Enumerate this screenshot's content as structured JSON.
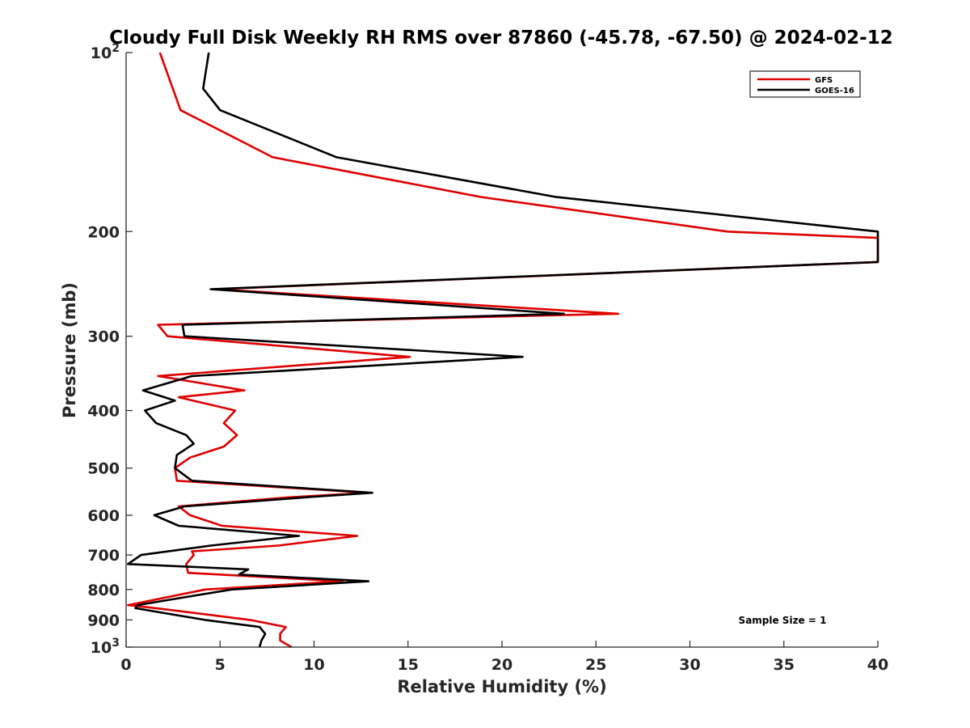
{
  "chart_data": {
    "type": "line",
    "title": "Cloudy Full Disk Weekly RH RMS over 87860 (-45.78, -67.50) @ 2024-02-12",
    "xlabel": "Relative Humidity (%)",
    "ylabel": "Pressure (mb)",
    "xlim": [
      0,
      40
    ],
    "ylim": [
      100,
      1000
    ],
    "y_scale": "log",
    "y_reversed": true,
    "grid": false,
    "legend_position": "top-right",
    "x_ticks": [
      0,
      5,
      10,
      15,
      20,
      25,
      30,
      35,
      40
    ],
    "y_ticks": [
      {
        "value": 100,
        "base": "10",
        "exp": "2"
      },
      {
        "value": 200,
        "label": "200"
      },
      {
        "value": 300,
        "label": "300"
      },
      {
        "value": 400,
        "label": "400"
      },
      {
        "value": 500,
        "label": "500"
      },
      {
        "value": 600,
        "label": "600"
      },
      {
        "value": 700,
        "label": "700"
      },
      {
        "value": 800,
        "label": "800"
      },
      {
        "value": 900,
        "label": "900"
      },
      {
        "value": 1000,
        "base": "10",
        "exp": "3"
      }
    ],
    "annotation": "Sample Size = 1",
    "series": [
      {
        "name": "GFS",
        "color": "#e00000",
        "points": [
          [
            1.8,
            100
          ],
          [
            2.9,
            125
          ],
          [
            7.8,
            150
          ],
          [
            18.9,
            175
          ],
          [
            32.0,
            200
          ],
          [
            40.0,
            205
          ],
          [
            40.0,
            225
          ],
          [
            4.8,
            250
          ],
          [
            26.2,
            275
          ],
          [
            1.7,
            287
          ],
          [
            2.2,
            300
          ],
          [
            15.1,
            325
          ],
          [
            1.7,
            350
          ],
          [
            6.3,
            370
          ],
          [
            2.8,
            380
          ],
          [
            5.8,
            400
          ],
          [
            5.2,
            420
          ],
          [
            5.9,
            440
          ],
          [
            5.2,
            460
          ],
          [
            3.4,
            480
          ],
          [
            2.6,
            500
          ],
          [
            2.7,
            525
          ],
          [
            12.9,
            550
          ],
          [
            8.6,
            560
          ],
          [
            2.8,
            580
          ],
          [
            3.4,
            600
          ],
          [
            5.1,
            625
          ],
          [
            12.3,
            650
          ],
          [
            8.1,
            675
          ],
          [
            3.5,
            690
          ],
          [
            3.6,
            700
          ],
          [
            3.2,
            725
          ],
          [
            3.3,
            750
          ],
          [
            11.5,
            775
          ],
          [
            4.2,
            800
          ],
          [
            0.1,
            850
          ],
          [
            1.6,
            860
          ],
          [
            6.6,
            900
          ],
          [
            8.5,
            925
          ],
          [
            8.2,
            950
          ],
          [
            8.2,
            975
          ],
          [
            8.8,
            1000
          ]
        ]
      },
      {
        "name": "GOES-16",
        "color": "#000000",
        "points": [
          [
            4.4,
            100
          ],
          [
            4.1,
            115
          ],
          [
            5.0,
            125
          ],
          [
            11.2,
            150
          ],
          [
            22.9,
            175
          ],
          [
            40.0,
            200
          ],
          [
            40.0,
            225
          ],
          [
            4.5,
            250
          ],
          [
            23.3,
            275
          ],
          [
            3.0,
            287
          ],
          [
            3.1,
            300
          ],
          [
            21.1,
            325
          ],
          [
            3.5,
            350
          ],
          [
            0.9,
            370
          ],
          [
            2.6,
            385
          ],
          [
            1.0,
            400
          ],
          [
            1.6,
            420
          ],
          [
            3.2,
            440
          ],
          [
            3.6,
            455
          ],
          [
            2.7,
            475
          ],
          [
            2.6,
            500
          ],
          [
            3.5,
            525
          ],
          [
            13.1,
            550
          ],
          [
            9.5,
            560
          ],
          [
            3.1,
            580
          ],
          [
            1.5,
            600
          ],
          [
            2.8,
            625
          ],
          [
            9.2,
            650
          ],
          [
            4.5,
            675
          ],
          [
            0.8,
            700
          ],
          [
            0.1,
            725
          ],
          [
            6.5,
            740
          ],
          [
            6.0,
            755
          ],
          [
            12.9,
            775
          ],
          [
            5.6,
            800
          ],
          [
            0.6,
            850
          ],
          [
            0.5,
            860
          ],
          [
            4.2,
            900
          ],
          [
            7.1,
            925
          ],
          [
            7.4,
            950
          ],
          [
            7.2,
            975
          ],
          [
            7.1,
            1000
          ]
        ]
      }
    ]
  }
}
